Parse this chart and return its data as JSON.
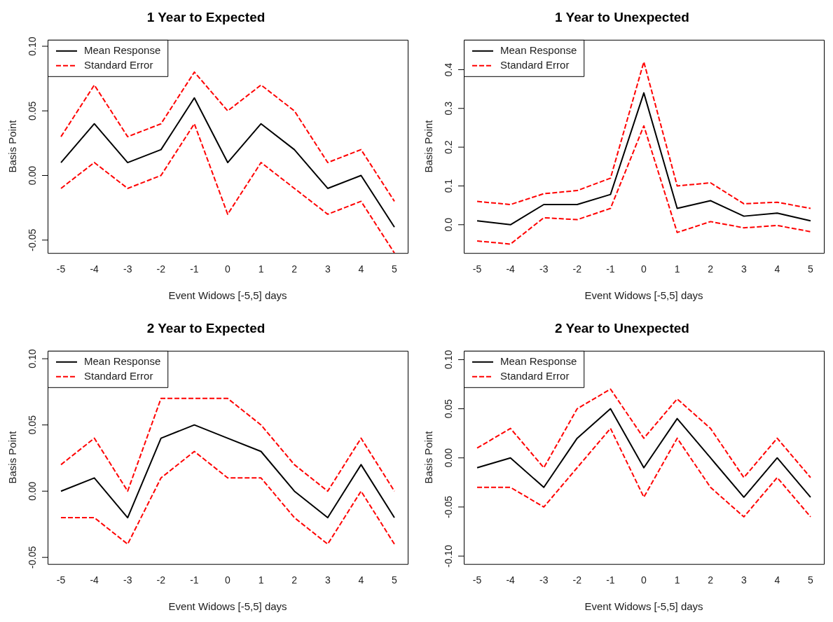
{
  "chart_data": [
    {
      "type": "line",
      "title": "1 Year to Expected",
      "xlabel": "Event Widows [-5,5] days",
      "ylabel": "Basis Point",
      "x": [
        -5,
        -4,
        -3,
        -2,
        -1,
        0,
        1,
        2,
        3,
        4,
        5
      ],
      "xlim": [
        -5.4,
        5.4
      ],
      "xticks": [
        -5,
        -4,
        -3,
        -2,
        -1,
        0,
        1,
        2,
        3,
        4,
        5
      ],
      "ylim": [
        -0.06,
        0.105
      ],
      "yticks": [
        {
          "value": -0.05,
          "label": "-0.05"
        },
        {
          "value": 0,
          "label": "0.00"
        },
        {
          "value": 0.05,
          "label": "0.05"
        },
        {
          "value": 0.1,
          "label": "0.10"
        }
      ],
      "grid": false,
      "legend": "top left",
      "marker": "none",
      "series": [
        {
          "name": "Mean Response",
          "color": "#000000",
          "line_style": "solid",
          "values": [
            0.01,
            0.04,
            0.01,
            0.02,
            0.06,
            0.01,
            0.04,
            0.02,
            -0.01,
            0,
            -0.04
          ]
        },
        {
          "name": "Standard Error",
          "color": "#ff0000",
          "line_style": "dashed",
          "values": [
            0.03,
            0.07,
            0.03,
            0.04,
            0.08,
            0.05,
            0.07,
            0.05,
            0.01,
            0.02,
            -0.02
          ]
        },
        {
          "color": "#ff0000",
          "line_style": "dashed",
          "values": [
            -0.01,
            0.01,
            -0.01,
            0,
            0.04,
            -0.03,
            0.01,
            -0.01,
            -0.03,
            -0.02,
            -0.06
          ]
        }
      ]
    },
    {
      "type": "line",
      "title": "1 Year to Unexpected",
      "xlabel": "Event Widows [-5,5] days",
      "ylabel": "Basis Point",
      "x": [
        -5,
        -4,
        -3,
        -2,
        -1,
        0,
        1,
        2,
        3,
        4,
        5
      ],
      "xlim": [
        -5.4,
        5.4
      ],
      "xticks": [
        -5,
        -4,
        -3,
        -2,
        -1,
        0,
        1,
        2,
        3,
        4,
        5
      ],
      "ylim": [
        -0.073,
        0.477
      ],
      "yticks": [
        {
          "value": 0,
          "label": "0.0"
        },
        {
          "value": 0.1,
          "label": "0.1"
        },
        {
          "value": 0.2,
          "label": "0.2"
        },
        {
          "value": 0.3,
          "label": "0.3"
        },
        {
          "value": 0.4,
          "label": "0.4"
        }
      ],
      "grid": false,
      "legend": "top left",
      "marker": "none",
      "series": [
        {
          "name": "Mean Response",
          "color": "#000000",
          "line_style": "solid",
          "values": [
            0.01,
            0.0,
            0.052,
            0.052,
            0.078,
            0.34,
            0.042,
            0.062,
            0.022,
            0.03,
            0.01
          ]
        },
        {
          "name": "Standard Error",
          "color": "#ff0000",
          "line_style": "dashed",
          "values": [
            0.06,
            0.052,
            0.08,
            0.088,
            0.12,
            0.42,
            0.1,
            0.108,
            0.054,
            0.058,
            0.042
          ]
        },
        {
          "color": "#ff0000",
          "line_style": "dashed",
          "values": [
            -0.042,
            -0.05,
            0.018,
            0.013,
            0.042,
            0.255,
            -0.02,
            0.008,
            -0.008,
            -0.002,
            -0.018
          ]
        }
      ]
    },
    {
      "type": "line",
      "title": "2 Year to Expected",
      "xlabel": "Event Widows [-5,5] days",
      "ylabel": "Basis Point",
      "x": [
        -5,
        -4,
        -3,
        -2,
        -1,
        0,
        1,
        2,
        3,
        4,
        5
      ],
      "xlim": [
        -5.4,
        5.4
      ],
      "xticks": [
        -5,
        -4,
        -3,
        -2,
        -1,
        0,
        1,
        2,
        3,
        4,
        5
      ],
      "ylim": [
        -0.055,
        0.106
      ],
      "yticks": [
        {
          "value": -0.05,
          "label": "-0.05"
        },
        {
          "value": 0,
          "label": "0.00"
        },
        {
          "value": 0.05,
          "label": "0.05"
        },
        {
          "value": 0.1,
          "label": "0.10"
        }
      ],
      "grid": false,
      "legend": "top left",
      "marker": "none",
      "series": [
        {
          "name": "Mean Response",
          "color": "#000000",
          "line_style": "solid",
          "values": [
            0,
            0.01,
            -0.02,
            0.04,
            0.05,
            0.04,
            0.03,
            0,
            -0.02,
            0.02,
            -0.02
          ]
        },
        {
          "name": "Standard Error",
          "color": "#ff0000",
          "line_style": "dashed",
          "values": [
            0.02,
            0.04,
            0,
            0.07,
            0.07,
            0.07,
            0.05,
            0.02,
            0,
            0.04,
            0
          ]
        },
        {
          "color": "#ff0000",
          "line_style": "dashed",
          "values": [
            -0.02,
            -0.02,
            -0.04,
            0.01,
            0.03,
            0.01,
            0.01,
            -0.02,
            -0.04,
            0,
            -0.04
          ]
        }
      ]
    },
    {
      "type": "line",
      "title": "2 Year to Unexpected",
      "xlabel": "Event Widows [-5,5] days",
      "ylabel": "Basis Point",
      "x": [
        -5,
        -4,
        -3,
        -2,
        -1,
        0,
        1,
        2,
        3,
        4,
        5
      ],
      "xlim": [
        -5.4,
        5.4
      ],
      "xticks": [
        -5,
        -4,
        -3,
        -2,
        -1,
        0,
        1,
        2,
        3,
        4,
        5
      ],
      "ylim": [
        -0.108,
        0.109
      ],
      "yticks": [
        {
          "value": -0.1,
          "label": "-0.10"
        },
        {
          "value": -0.05,
          "label": "-0.05"
        },
        {
          "value": 0,
          "label": "0.00"
        },
        {
          "value": 0.05,
          "label": "0.05"
        },
        {
          "value": 0.1,
          "label": "0.10"
        }
      ],
      "grid": false,
      "legend": "top left",
      "marker": "none",
      "series": [
        {
          "name": "Mean Response",
          "color": "#000000",
          "line_style": "solid",
          "values": [
            -0.01,
            0,
            -0.03,
            0.02,
            0.05,
            -0.01,
            0.04,
            0,
            -0.04,
            0,
            -0.04
          ]
        },
        {
          "name": "Standard Error",
          "color": "#ff0000",
          "line_style": "dashed",
          "values": [
            0.01,
            0.03,
            -0.01,
            0.05,
            0.07,
            0.02,
            0.06,
            0.03,
            -0.02,
            0.02,
            -0.02
          ]
        },
        {
          "color": "#ff0000",
          "line_style": "dashed",
          "values": [
            -0.03,
            -0.03,
            -0.05,
            -0.01,
            0.03,
            -0.04,
            0.02,
            -0.03,
            -0.06,
            -0.02,
            -0.06
          ]
        }
      ]
    }
  ]
}
